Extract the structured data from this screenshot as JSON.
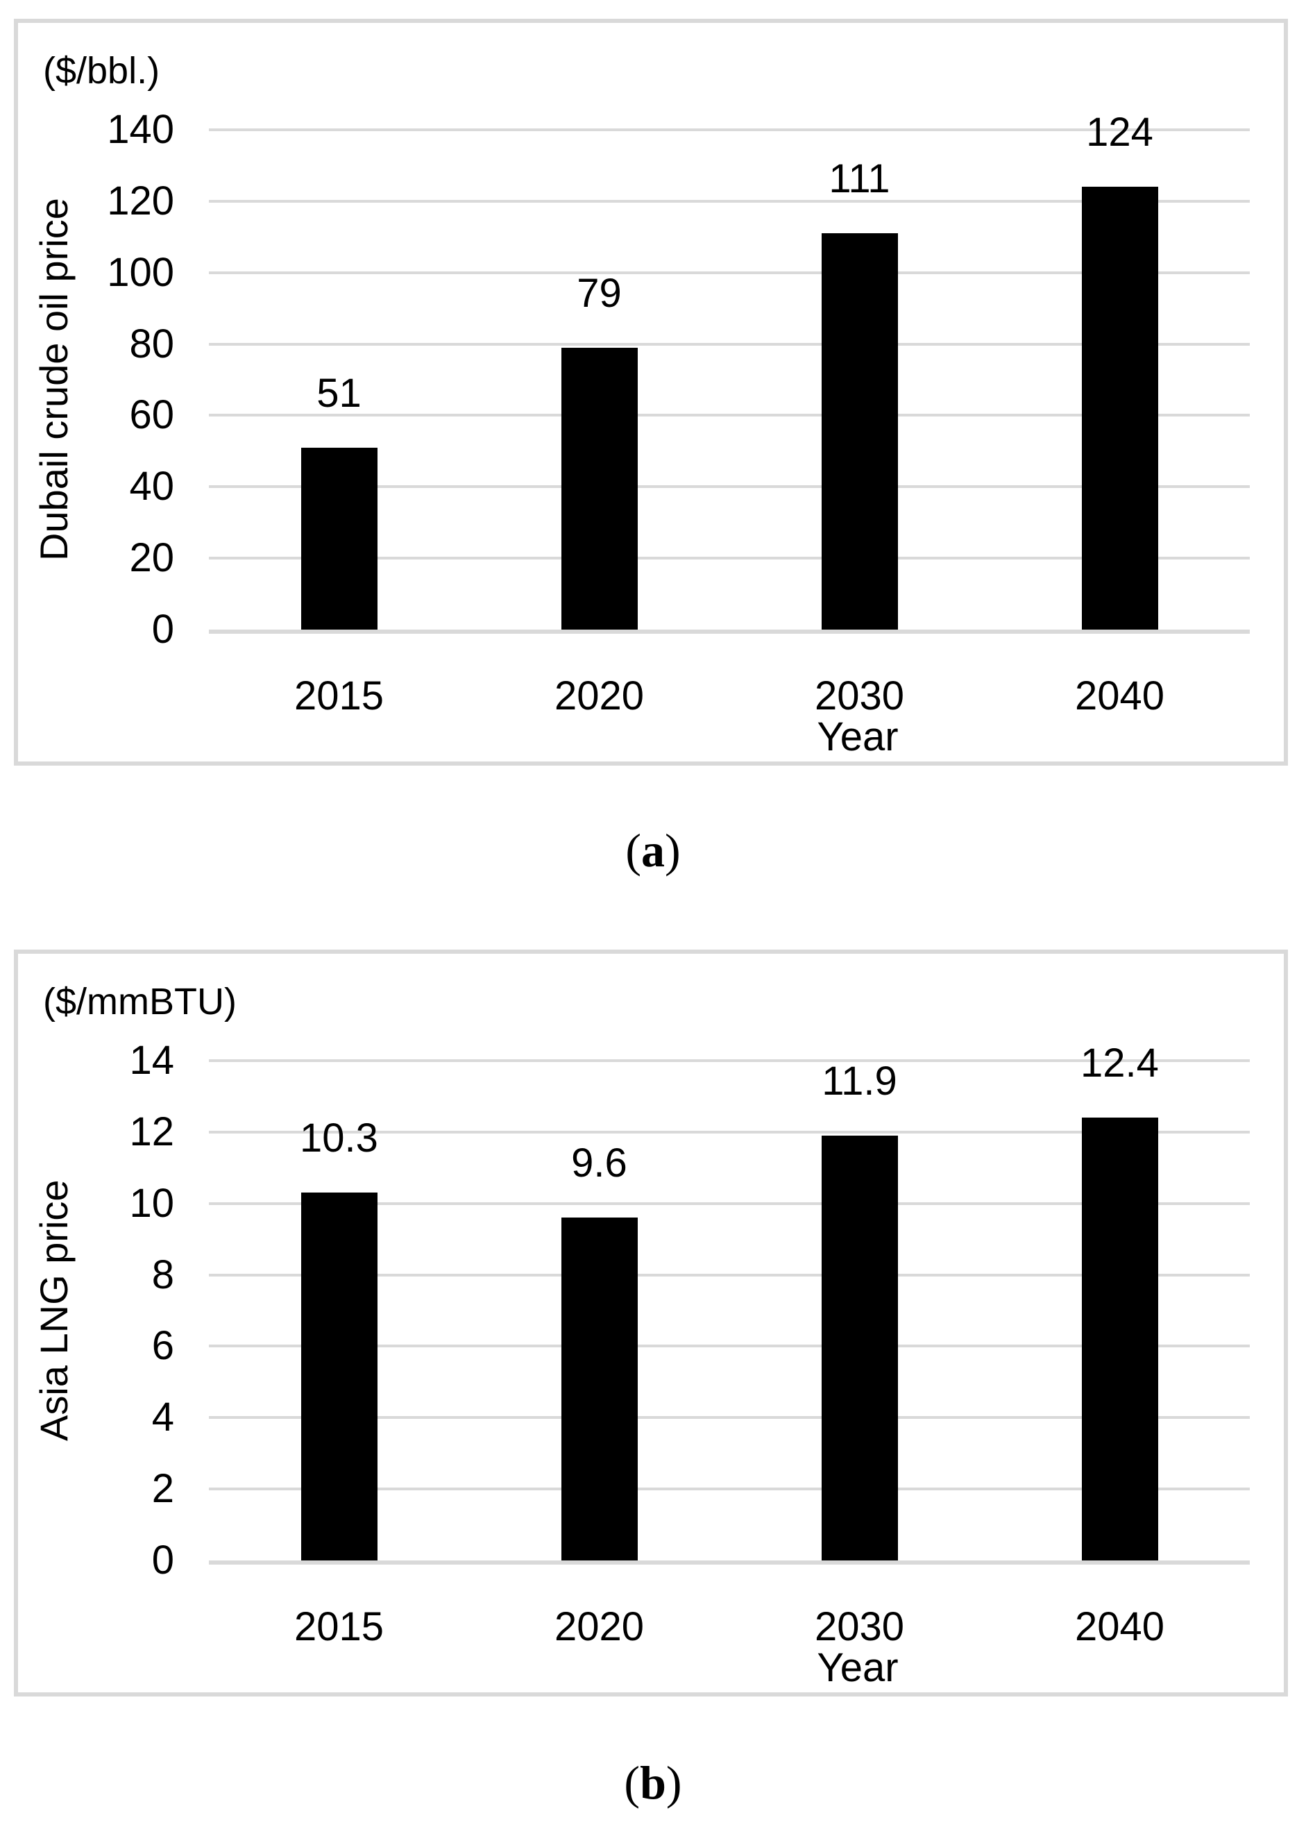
{
  "colors": {
    "bar": "#000000",
    "gridline": "#d9d9d9",
    "panel_border": "#d9d9d9",
    "text": "#000000",
    "background": "#ffffff"
  },
  "chart_data": [
    {
      "id": "a",
      "type": "bar",
      "unit_label": "($/bbl.)",
      "ylabel": "Dubail crude oil price",
      "xlabel": "Year",
      "categories": [
        "2015",
        "2020",
        "2030",
        "2040"
      ],
      "values": [
        51,
        79,
        111,
        124
      ],
      "value_labels": [
        "51",
        "79",
        "111",
        "124"
      ],
      "ylim": [
        0,
        140
      ],
      "ytick_step": 20,
      "yticks": [
        140,
        120,
        100,
        80,
        60,
        40,
        20,
        0
      ],
      "grid": true,
      "legend": "none",
      "caption": {
        "prefix": "(",
        "letter": "a",
        "suffix": ")"
      }
    },
    {
      "id": "b",
      "type": "bar",
      "unit_label": "($/mmBTU)",
      "ylabel": "Asia LNG price",
      "xlabel": "Year",
      "categories": [
        "2015",
        "2020",
        "2030",
        "2040"
      ],
      "values": [
        10.3,
        9.6,
        11.9,
        12.4
      ],
      "value_labels": [
        "10.3",
        "9.6",
        "11.9",
        "12.4"
      ],
      "ylim": [
        0,
        14
      ],
      "ytick_step": 2,
      "yticks": [
        14,
        12,
        10,
        8,
        6,
        4,
        2,
        0
      ],
      "grid": true,
      "legend": "none",
      "caption": {
        "prefix": "(",
        "letter": "b",
        "suffix": ")"
      }
    }
  ]
}
